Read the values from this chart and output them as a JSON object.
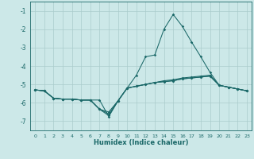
{
  "xlabel": "Humidex (Indice chaleur)",
  "background_color": "#cce8e8",
  "grid_color": "#aacccc",
  "line_color": "#1a6868",
  "xlim": [
    -0.5,
    23.5
  ],
  "ylim": [
    -7.5,
    -0.5
  ],
  "yticks": [
    -7,
    -6,
    -5,
    -4,
    -3,
    -2,
    -1
  ],
  "xticks": [
    0,
    1,
    2,
    3,
    4,
    5,
    6,
    7,
    8,
    9,
    10,
    11,
    12,
    13,
    14,
    15,
    16,
    17,
    18,
    19,
    20,
    21,
    22,
    23
  ],
  "main_y": [
    -5.3,
    -5.35,
    -5.75,
    -5.8,
    -5.8,
    -5.85,
    -5.85,
    -5.85,
    -6.75,
    -5.9,
    -5.2,
    -4.5,
    -3.5,
    -3.4,
    -2.0,
    -1.2,
    -1.85,
    -2.7,
    -3.5,
    -4.35,
    -5.05,
    -5.15,
    -5.25,
    -5.35
  ],
  "sec_y1": [
    -5.3,
    -5.35,
    -5.75,
    -5.8,
    -5.8,
    -5.85,
    -5.85,
    -6.35,
    -6.5,
    -5.9,
    -5.2,
    -5.1,
    -5.0,
    -4.9,
    -4.8,
    -4.75,
    -4.65,
    -4.6,
    -4.55,
    -4.5,
    -5.05,
    -5.15,
    -5.25,
    -5.35
  ],
  "sec_y2": [
    -5.3,
    -5.35,
    -5.75,
    -5.8,
    -5.8,
    -5.85,
    -5.85,
    -6.35,
    -6.6,
    -5.9,
    -5.2,
    -5.1,
    -5.0,
    -4.9,
    -4.85,
    -4.8,
    -4.7,
    -4.65,
    -4.6,
    -4.55,
    -5.05,
    -5.15,
    -5.25,
    -5.35
  ],
  "sec_y3": [
    -5.3,
    -5.35,
    -5.75,
    -5.8,
    -5.8,
    -5.85,
    -5.85,
    -6.35,
    -6.7,
    -5.9,
    -5.2,
    -5.1,
    -5.0,
    -4.9,
    -4.85,
    -4.8,
    -4.7,
    -4.65,
    -4.6,
    -4.55,
    -5.05,
    -5.15,
    -5.25,
    -5.35
  ]
}
